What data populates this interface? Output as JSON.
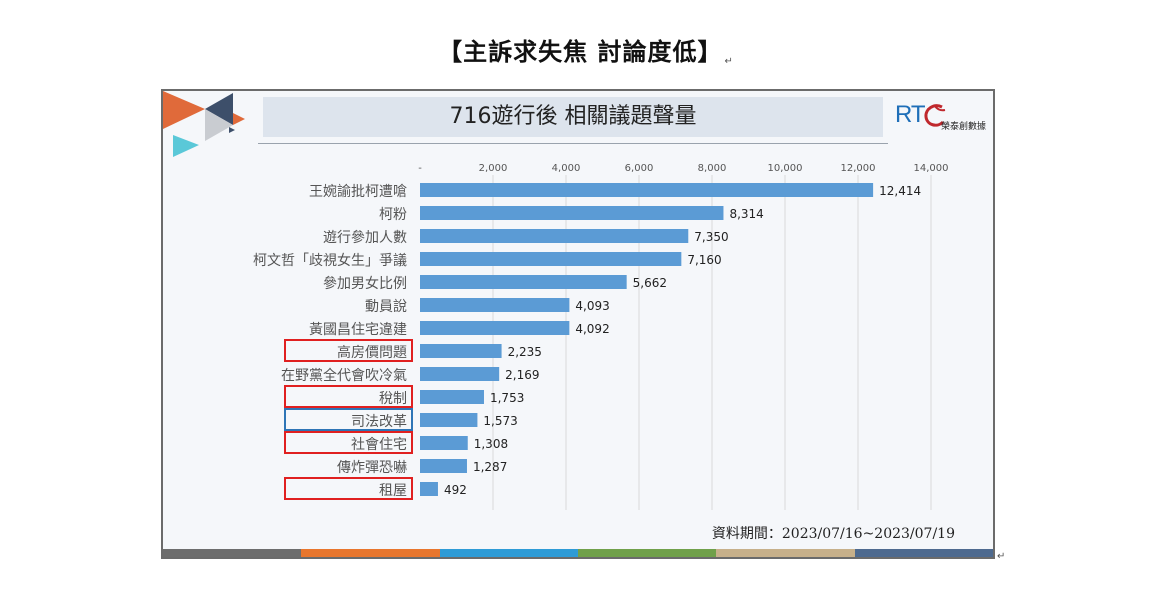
{
  "heading": "【主訴求失焦  討論度低】",
  "paragraph_mark": "↵",
  "slide": {
    "title": "716遊行後 相關議題聲量",
    "logo_text": "RT",
    "logo_sub": "榮泰創數據",
    "source_note": "資料期間：2023/07/16~2023/07/19"
  },
  "colors": {
    "bar": "#5b9bd5",
    "highlight_red": "#e02020",
    "highlight_blue": "#2e75b6",
    "grid": "#d9d9d9",
    "stripe": [
      "#6d6d6d",
      "#e8762d",
      "#2e9bd6",
      "#70a04a",
      "#c7b08a",
      "#4e6a8f"
    ],
    "deco": [
      "#e06a3a",
      "#3d4f6a",
      "#5ac8d8"
    ]
  },
  "chart_data": {
    "type": "bar",
    "orientation": "horizontal",
    "categories": [
      "王婉諭批柯遭嗆",
      "柯粉",
      "遊行參加人數",
      "柯文哲「歧視女生」爭議",
      "參加男女比例",
      "動員說",
      "黃國昌住宅違建",
      "高房價問題",
      "在野黨全代會吹冷氣",
      "稅制",
      "司法改革",
      "社會住宅",
      "傳炸彈恐嚇",
      "租屋"
    ],
    "values": [
      12414,
      8314,
      7350,
      7160,
      5662,
      4093,
      4092,
      2235,
      2169,
      1753,
      1573,
      1308,
      1287,
      492
    ],
    "value_labels": [
      "12,414",
      "8,314",
      "7,350",
      "7,160",
      "5,662",
      "4,093",
      "4,092",
      "2,235",
      "2,169",
      "1,753",
      "1,573",
      "1,308",
      "1,287",
      "492"
    ],
    "highlight": [
      "",
      "",
      "",
      "",
      "",
      "",
      "",
      "red",
      "",
      "red",
      "blue",
      "red",
      "",
      "red"
    ],
    "xlim": [
      0,
      14000
    ],
    "xticks": [
      0,
      2000,
      4000,
      6000,
      8000,
      10000,
      12000,
      14000
    ],
    "xtick_labels": [
      "-",
      "2,000",
      "4,000",
      "6,000",
      "8,000",
      "10,000",
      "12,000",
      "14,000"
    ],
    "axis_position": "top",
    "grid": true,
    "legend": "none"
  }
}
